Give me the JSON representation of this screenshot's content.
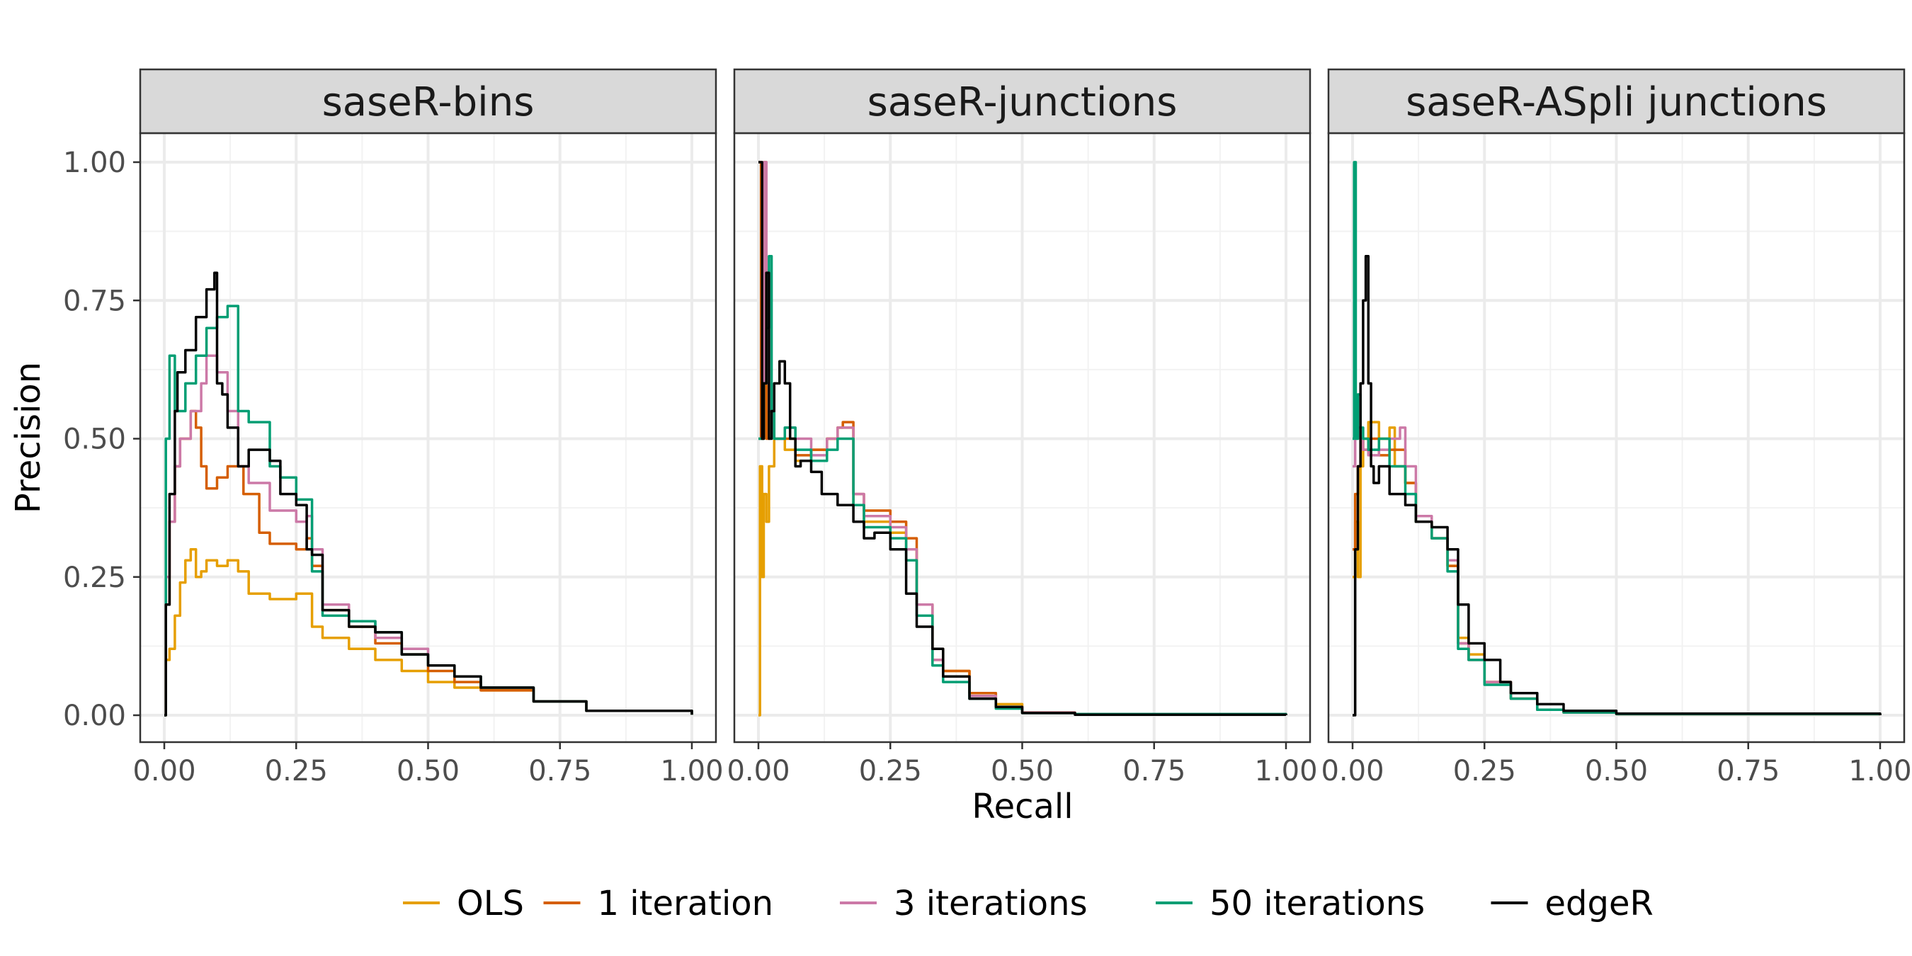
{
  "chart_data": {
    "type": "line",
    "xlabel": "Recall",
    "ylabel": "Precision",
    "xlim": [
      0,
      1
    ],
    "ylim": [
      0,
      1
    ],
    "x_ticks": [
      "0.00",
      "0.25",
      "0.50",
      "0.75",
      "1.00"
    ],
    "y_ticks": [
      "0.00",
      "0.25",
      "0.50",
      "0.75",
      "1.00"
    ],
    "grid": true,
    "legend_position": "bottom",
    "legend": [
      {
        "name": "OLS",
        "color": "#E69F00"
      },
      {
        "name": "1 iteration",
        "color": "#D55E00"
      },
      {
        "name": "3 iterations",
        "color": "#CC79A7"
      },
      {
        "name": "50 iterations",
        "color": "#009E73"
      },
      {
        "name": "edgeR",
        "color": "#000000"
      }
    ],
    "panels": [
      {
        "title": "saseR-bins",
        "series": [
          {
            "name": "OLS",
            "color": "#E69F00",
            "x": [
              0.0,
              0.003,
              0.01,
              0.02,
              0.03,
              0.04,
              0.05,
              0.06,
              0.07,
              0.08,
              0.1,
              0.12,
              0.14,
              0.16,
              0.2,
              0.25,
              0.28,
              0.3,
              0.35,
              0.4,
              0.45,
              0.5,
              0.55,
              0.6,
              0.7,
              0.8,
              1.0
            ],
            "y": [
              0.0,
              0.1,
              0.12,
              0.18,
              0.24,
              0.28,
              0.3,
              0.25,
              0.26,
              0.28,
              0.27,
              0.28,
              0.26,
              0.22,
              0.21,
              0.22,
              0.16,
              0.14,
              0.12,
              0.1,
              0.08,
              0.06,
              0.05,
              0.045,
              0.025,
              0.008,
              0.001
            ]
          },
          {
            "name": "1 iteration",
            "color": "#D55E00",
            "x": [
              0.0,
              0.003,
              0.01,
              0.02,
              0.03,
              0.05,
              0.06,
              0.07,
              0.08,
              0.1,
              0.12,
              0.15,
              0.18,
              0.2,
              0.25,
              0.27,
              0.28,
              0.3,
              0.35,
              0.4,
              0.45,
              0.5,
              0.55,
              0.6,
              0.7,
              0.8,
              1.0
            ],
            "y": [
              0.0,
              0.2,
              0.35,
              0.45,
              0.5,
              0.55,
              0.52,
              0.45,
              0.41,
              0.43,
              0.45,
              0.4,
              0.33,
              0.31,
              0.3,
              0.32,
              0.27,
              0.19,
              0.16,
              0.13,
              0.11,
              0.08,
              0.06,
              0.045,
              0.025,
              0.008,
              0.001
            ]
          },
          {
            "name": "3 iterations",
            "color": "#CC79A7",
            "x": [
              0.0,
              0.003,
              0.01,
              0.02,
              0.03,
              0.05,
              0.07,
              0.08,
              0.1,
              0.12,
              0.14,
              0.16,
              0.2,
              0.25,
              0.27,
              0.28,
              0.3,
              0.35,
              0.4,
              0.45,
              0.5,
              0.55,
              0.6,
              0.7,
              0.8,
              1.0
            ],
            "y": [
              0.0,
              0.25,
              0.35,
              0.45,
              0.5,
              0.55,
              0.6,
              0.65,
              0.62,
              0.55,
              0.45,
              0.42,
              0.37,
              0.35,
              0.36,
              0.3,
              0.2,
              0.17,
              0.14,
              0.12,
              0.09,
              0.07,
              0.05,
              0.025,
              0.008,
              0.001
            ]
          },
          {
            "name": "50 iterations",
            "color": "#009E73",
            "x": [
              0.0,
              0.003,
              0.01,
              0.02,
              0.04,
              0.06,
              0.08,
              0.1,
              0.12,
              0.14,
              0.16,
              0.2,
              0.22,
              0.25,
              0.28,
              0.3,
              0.35,
              0.4,
              0.45,
              0.5,
              0.55,
              0.6,
              0.7,
              0.8,
              1.0
            ],
            "y": [
              0.0,
              0.5,
              0.65,
              0.55,
              0.6,
              0.65,
              0.7,
              0.72,
              0.74,
              0.55,
              0.53,
              0.45,
              0.43,
              0.39,
              0.26,
              0.18,
              0.17,
              0.15,
              0.11,
              0.09,
              0.07,
              0.05,
              0.025,
              0.008,
              0.001
            ]
          },
          {
            "name": "edgeR",
            "color": "#000000",
            "x": [
              0.0,
              0.003,
              0.01,
              0.02,
              0.025,
              0.04,
              0.06,
              0.08,
              0.095,
              0.1,
              0.11,
              0.12,
              0.14,
              0.16,
              0.2,
              0.22,
              0.25,
              0.27,
              0.28,
              0.3,
              0.35,
              0.4,
              0.45,
              0.5,
              0.55,
              0.6,
              0.7,
              0.8,
              1.0
            ],
            "y": [
              0.0,
              0.2,
              0.4,
              0.55,
              0.62,
              0.66,
              0.72,
              0.77,
              0.8,
              0.6,
              0.58,
              0.52,
              0.45,
              0.48,
              0.46,
              0.4,
              0.38,
              0.3,
              0.29,
              0.19,
              0.16,
              0.15,
              0.11,
              0.09,
              0.07,
              0.05,
              0.025,
              0.008,
              0.001
            ]
          }
        ]
      },
      {
        "title": "saseR-junctions",
        "series": [
          {
            "name": "OLS",
            "color": "#E69F00",
            "x": [
              0.0,
              0.003,
              0.007,
              0.01,
              0.015,
              0.02,
              0.03,
              0.05,
              0.07,
              0.1,
              0.13,
              0.15,
              0.18,
              0.2,
              0.25,
              0.28,
              0.3,
              0.33,
              0.35,
              0.4,
              0.45,
              0.5,
              0.6,
              1.0
            ],
            "y": [
              0.0,
              0.45,
              0.25,
              0.4,
              0.35,
              0.45,
              0.5,
              0.48,
              0.46,
              0.48,
              0.5,
              0.52,
              0.38,
              0.35,
              0.33,
              0.3,
              0.2,
              0.12,
              0.08,
              0.04,
              0.02,
              0.005,
              0.002,
              0.0
            ]
          },
          {
            "name": "1 iteration",
            "color": "#D55E00",
            "x": [
              0.0,
              0.005,
              0.01,
              0.015,
              0.02,
              0.03,
              0.05,
              0.07,
              0.1,
              0.13,
              0.15,
              0.16,
              0.18,
              0.2,
              0.25,
              0.28,
              0.3,
              0.33,
              0.35,
              0.4,
              0.45,
              0.5,
              0.6,
              1.0
            ],
            "y": [
              1.0,
              0.5,
              1.0,
              0.5,
              0.55,
              0.5,
              0.5,
              0.47,
              0.48,
              0.5,
              0.52,
              0.53,
              0.4,
              0.37,
              0.35,
              0.32,
              0.2,
              0.1,
              0.08,
              0.04,
              0.015,
              0.005,
              0.002,
              0.0
            ]
          },
          {
            "name": "3 iterations",
            "color": "#CC79A7",
            "x": [
              0.0,
              0.01,
              0.015,
              0.02,
              0.03,
              0.05,
              0.07,
              0.1,
              0.13,
              0.15,
              0.18,
              0.2,
              0.25,
              0.28,
              0.3,
              0.33,
              0.35,
              0.4,
              0.45,
              0.5,
              0.6,
              1.0
            ],
            "y": [
              0.5,
              1.0,
              0.6,
              0.55,
              0.5,
              0.52,
              0.5,
              0.47,
              0.5,
              0.52,
              0.4,
              0.36,
              0.34,
              0.3,
              0.2,
              0.1,
              0.07,
              0.035,
              0.015,
              0.005,
              0.002,
              0.0
            ]
          },
          {
            "name": "50 iterations",
            "color": "#009E73",
            "x": [
              0.0,
              0.01,
              0.015,
              0.02,
              0.025,
              0.03,
              0.05,
              0.07,
              0.1,
              0.13,
              0.15,
              0.18,
              0.2,
              0.25,
              0.28,
              0.3,
              0.33,
              0.35,
              0.4,
              0.45,
              0.5,
              0.6,
              1.0
            ],
            "y": [
              0.5,
              0.6,
              0.7,
              0.83,
              0.55,
              0.5,
              0.52,
              0.48,
              0.46,
              0.48,
              0.5,
              0.38,
              0.34,
              0.32,
              0.28,
              0.18,
              0.09,
              0.06,
              0.03,
              0.012,
              0.004,
              0.002,
              0.0
            ]
          },
          {
            "name": "edgeR",
            "color": "#000000",
            "x": [
              0.0,
              0.003,
              0.007,
              0.01,
              0.015,
              0.02,
              0.025,
              0.03,
              0.04,
              0.05,
              0.06,
              0.07,
              0.08,
              0.1,
              0.12,
              0.15,
              0.18,
              0.2,
              0.22,
              0.25,
              0.28,
              0.3,
              0.33,
              0.35,
              0.4,
              0.45,
              0.5,
              0.6,
              1.0
            ],
            "y": [
              1.0,
              1.0,
              0.5,
              0.6,
              0.8,
              0.5,
              0.55,
              0.6,
              0.64,
              0.6,
              0.5,
              0.45,
              0.46,
              0.44,
              0.4,
              0.38,
              0.35,
              0.32,
              0.33,
              0.3,
              0.22,
              0.16,
              0.12,
              0.07,
              0.03,
              0.015,
              0.004,
              0.001,
              0.0
            ]
          }
        ]
      },
      {
        "title": "saseR-ASpli junctions",
        "series": [
          {
            "name": "OLS",
            "color": "#E69F00",
            "x": [
              0.0,
              0.005,
              0.01,
              0.015,
              0.02,
              0.03,
              0.05,
              0.07,
              0.08,
              0.1,
              0.12,
              0.15,
              0.18,
              0.2,
              0.22,
              0.25,
              0.3,
              0.35,
              0.4,
              0.5,
              1.0
            ],
            "y": [
              0.25,
              0.35,
              0.25,
              0.45,
              0.5,
              0.53,
              0.5,
              0.52,
              0.45,
              0.42,
              0.35,
              0.32,
              0.27,
              0.14,
              0.11,
              0.06,
              0.03,
              0.01,
              0.005,
              0.002,
              0.0
            ]
          },
          {
            "name": "1 iteration",
            "color": "#D55E00",
            "x": [
              0.0,
              0.005,
              0.01,
              0.015,
              0.02,
              0.03,
              0.05,
              0.07,
              0.1,
              0.12,
              0.15,
              0.18,
              0.2,
              0.22,
              0.25,
              0.3,
              0.35,
              0.4,
              0.5,
              1.0
            ],
            "y": [
              0.3,
              0.4,
              0.45,
              0.5,
              0.48,
              0.5,
              0.47,
              0.48,
              0.42,
              0.35,
              0.32,
              0.27,
              0.13,
              0.1,
              0.06,
              0.03,
              0.01,
              0.005,
              0.002,
              0.0
            ]
          },
          {
            "name": "3 iterations",
            "color": "#CC79A7",
            "x": [
              0.0,
              0.005,
              0.01,
              0.015,
              0.02,
              0.03,
              0.05,
              0.07,
              0.09,
              0.1,
              0.12,
              0.15,
              0.18,
              0.2,
              0.22,
              0.25,
              0.3,
              0.35,
              0.4,
              0.5,
              1.0
            ],
            "y": [
              0.45,
              0.5,
              0.52,
              0.5,
              0.48,
              0.47,
              0.48,
              0.5,
              0.52,
              0.45,
              0.36,
              0.32,
              0.28,
              0.13,
              0.1,
              0.06,
              0.03,
              0.01,
              0.005,
              0.002,
              0.0
            ]
          },
          {
            "name": "50 iterations",
            "color": "#009E73",
            "x": [
              0.0,
              0.003,
              0.006,
              0.01,
              0.015,
              0.02,
              0.03,
              0.05,
              0.07,
              0.1,
              0.12,
              0.15,
              0.18,
              0.2,
              0.22,
              0.25,
              0.3,
              0.35,
              0.4,
              0.5,
              1.0
            ],
            "y": [
              0.5,
              1.0,
              0.5,
              0.58,
              0.52,
              0.5,
              0.48,
              0.5,
              0.45,
              0.4,
              0.35,
              0.32,
              0.26,
              0.12,
              0.1,
              0.055,
              0.03,
              0.01,
              0.005,
              0.002,
              0.0
            ]
          },
          {
            "name": "edgeR",
            "color": "#000000",
            "x": [
              0.0,
              0.005,
              0.01,
              0.015,
              0.02,
              0.025,
              0.03,
              0.035,
              0.04,
              0.05,
              0.07,
              0.1,
              0.12,
              0.15,
              0.18,
              0.2,
              0.22,
              0.25,
              0.28,
              0.3,
              0.35,
              0.4,
              0.5,
              1.0
            ],
            "y": [
              0.0,
              0.3,
              0.45,
              0.6,
              0.75,
              0.83,
              0.6,
              0.45,
              0.42,
              0.45,
              0.4,
              0.38,
              0.35,
              0.34,
              0.3,
              0.2,
              0.13,
              0.1,
              0.06,
              0.04,
              0.02,
              0.008,
              0.003,
              0.0
            ]
          }
        ]
      }
    ]
  }
}
